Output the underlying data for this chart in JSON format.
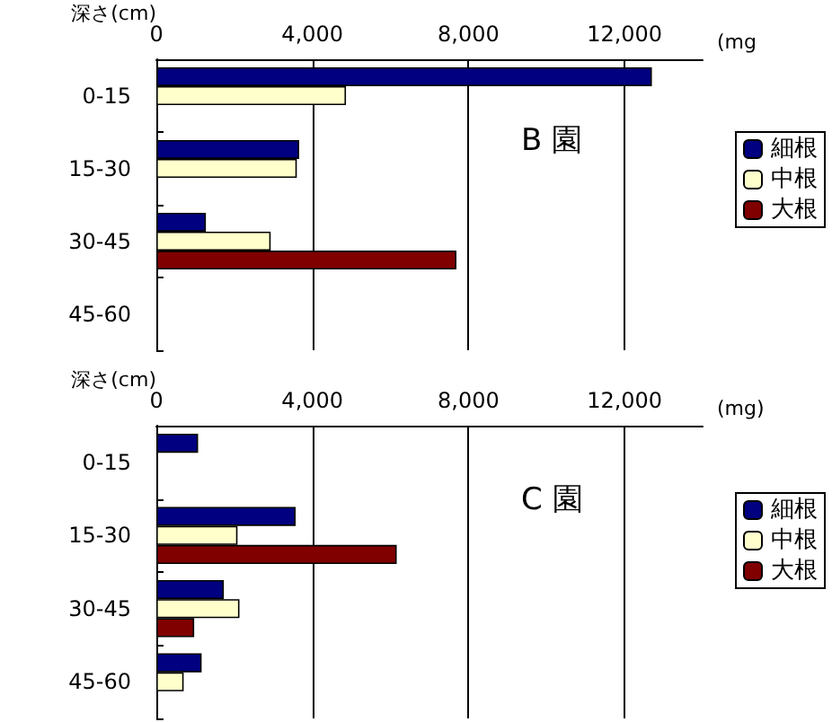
{
  "chart_data": [
    {
      "type": "bar",
      "orientation": "horizontal",
      "xlabel": "(mg",
      "ylabel": "深さ(cm)",
      "annotations": [
        "B 園"
      ],
      "categories": [
        "0-15",
        "15-30",
        "30-45",
        "45-60"
      ],
      "xlim": [
        0,
        14000
      ],
      "xticks": [
        {
          "value": 0,
          "label": "0"
        },
        {
          "value": 4000,
          "label": "4,000"
        },
        {
          "value": 8000,
          "label": "8,000"
        },
        {
          "value": 12000,
          "label": "12,000"
        }
      ],
      "grid": "x",
      "legend": "right",
      "series": [
        {
          "name": "細根",
          "color": "#000080",
          "values": [
            12700,
            3660,
            1270,
            null
          ]
        },
        {
          "name": "中根",
          "color": "#ffffcc",
          "values": [
            4860,
            3600,
            2930,
            null
          ]
        },
        {
          "name": "大根",
          "color": "#800000",
          "values": [
            null,
            null,
            7690,
            null
          ]
        }
      ]
    },
    {
      "type": "bar",
      "orientation": "horizontal",
      "xlabel": "(mg)",
      "ylabel": "深さ(cm)",
      "annotations": [
        "C 園"
      ],
      "categories": [
        "0-15",
        "15-30",
        "30-45",
        "45-60"
      ],
      "xlim": [
        0,
        14000
      ],
      "xticks": [
        {
          "value": 0,
          "label": "0"
        },
        {
          "value": 4000,
          "label": "4,000"
        },
        {
          "value": 8000,
          "label": "8,000"
        },
        {
          "value": 12000,
          "label": "12,000"
        }
      ],
      "grid": "x",
      "legend": "right",
      "series": [
        {
          "name": "細根",
          "color": "#000080",
          "values": [
            1070,
            3570,
            1730,
            1160
          ]
        },
        {
          "name": "中根",
          "color": "#ffffcc",
          "values": [
            null,
            2080,
            2130,
            700
          ]
        },
        {
          "name": "大根",
          "color": "#800000",
          "values": [
            null,
            6160,
            970,
            null
          ]
        }
      ]
    }
  ]
}
